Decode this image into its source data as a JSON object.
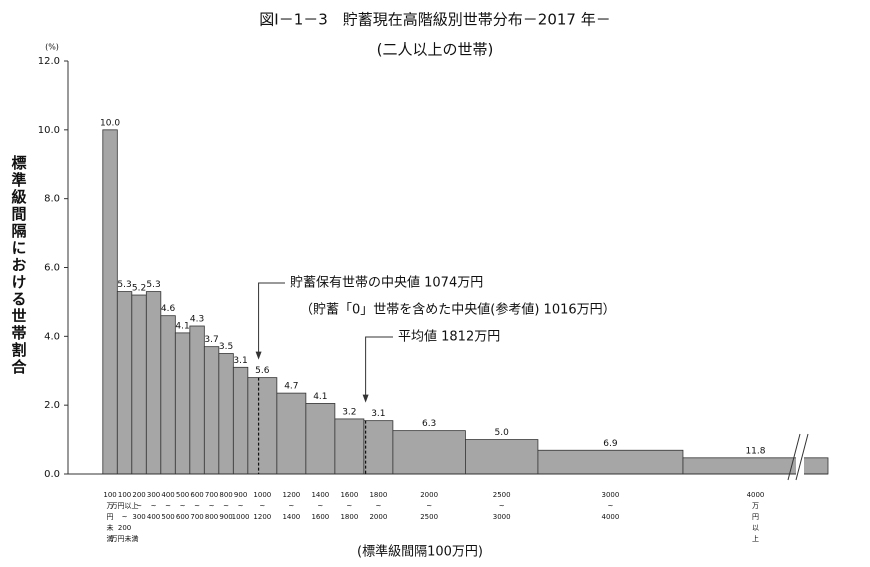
{
  "chart_data": {
    "type": "histogram",
    "title": "図Ⅰ－1－3　貯蓄現在高階級別世帯分布－2017 年－",
    "subtitle": "(二人以上の世帯)",
    "y_unit": "(%)",
    "ylabel": "標準級間隔における世帯割合",
    "xlabel": "(標準級間隔100万円)",
    "bins": [
      0,
      100,
      200,
      300,
      400,
      500,
      600,
      700,
      800,
      900,
      1000,
      1200,
      1400,
      1600,
      1800,
      2000,
      2500,
      3000,
      4000,
      5000
    ],
    "values": [
      10.0,
      5.3,
      5.2,
      5.3,
      4.6,
      4.1,
      4.3,
      3.7,
      3.5,
      3.1,
      2.8,
      2.35,
      2.05,
      1.6,
      1.55,
      1.26,
      1.0,
      0.69,
      0.47
    ],
    "share_labels": [
      "10.0",
      "5.3",
      "5.2",
      "5.3",
      "4.6",
      "4.1",
      "4.3",
      "3.7",
      "3.5",
      "3.1",
      "5.6",
      "4.7",
      "4.1",
      "3.2",
      "3.1",
      "6.3",
      "5.0",
      "6.9",
      "11.8"
    ],
    "bin_labels": [
      [
        "100",
        "万",
        "円",
        "未",
        "満"
      ],
      [
        "100",
        "万円以上",
        "~",
        "200",
        "万円未満"
      ],
      [
        "200",
        "~",
        "300"
      ],
      [
        "300",
        "~",
        "400"
      ],
      [
        "400",
        "~",
        "500"
      ],
      [
        "500",
        "~",
        "600"
      ],
      [
        "600",
        "~",
        "700"
      ],
      [
        "700",
        "~",
        "800"
      ],
      [
        "800",
        "~",
        "900"
      ],
      [
        "900",
        "~",
        "1000"
      ],
      [
        "1000",
        "~",
        "1200"
      ],
      [
        "1200",
        "~",
        "1400"
      ],
      [
        "1400",
        "~",
        "1600"
      ],
      [
        "1600",
        "~",
        "1800"
      ],
      [
        "1800",
        "~",
        "2000"
      ],
      [
        "2000",
        "~",
        "2500"
      ],
      [
        "2500",
        "~",
        "3000"
      ],
      [
        "3000",
        "~",
        "4000"
      ],
      [
        "4000",
        "万",
        "円",
        "以",
        "上"
      ]
    ],
    "color": "#a6a6a6",
    "xlim": [
      -240,
      5000
    ],
    "ylim": [
      0,
      12
    ],
    "yticks": [
      {
        "value": 0,
        "label": "0.0"
      },
      {
        "value": 2,
        "label": "2.0"
      },
      {
        "value": 4,
        "label": "4.0"
      },
      {
        "value": 6,
        "label": "6.0"
      },
      {
        "value": 8,
        "label": "8.0"
      },
      {
        "value": 10,
        "label": "10.0"
      },
      {
        "value": 12,
        "label": "12.0"
      }
    ],
    "annotations": [
      {
        "text": "貯蓄保有世帯の中央値 1074万円",
        "x": 1074
      },
      {
        "text": "（貯蓄「0」世帯を含めた中央値(参考値) 1016万円）"
      },
      {
        "text": "平均値 1812万円",
        "x": 1812
      }
    ]
  }
}
